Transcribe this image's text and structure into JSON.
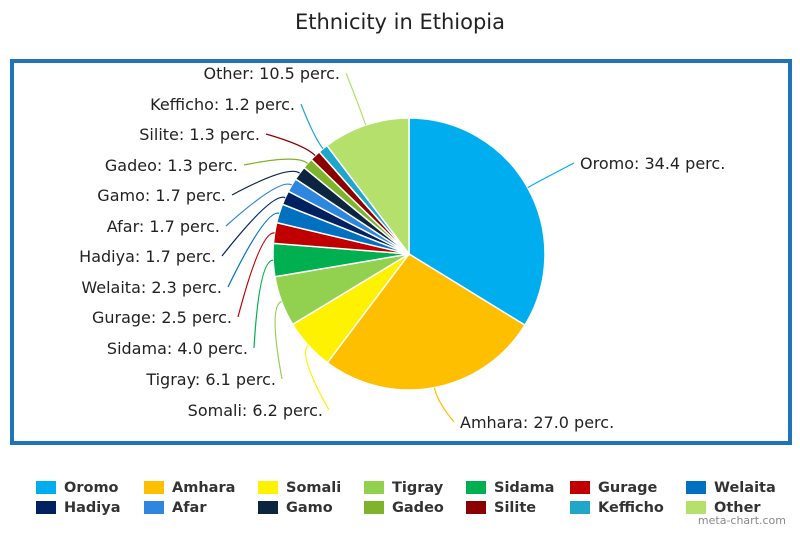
{
  "chart_data": {
    "type": "pie",
    "title": "Ethnicity in Ethiopia",
    "slices": [
      {
        "name": "Oromo",
        "value": 34.4,
        "label": "Oromo: 34.4 perc.",
        "color": "#00aeef"
      },
      {
        "name": "Amhara",
        "value": 27.0,
        "label": "Amhara: 27.0 perc.",
        "color": "#fdbf00"
      },
      {
        "name": "Somali",
        "value": 6.2,
        "label": "Somali: 6.2 perc.",
        "color": "#fff200"
      },
      {
        "name": "Tigray",
        "value": 6.1,
        "label": "Tigray: 6.1 perc.",
        "color": "#92d050"
      },
      {
        "name": "Sidama",
        "value": 4.0,
        "label": "Sidama: 4.0 perc.",
        "color": "#00b050"
      },
      {
        "name": "Gurage",
        "value": 2.5,
        "label": "Gurage: 2.5 perc.",
        "color": "#c00000"
      },
      {
        "name": "Welaita",
        "value": 2.3,
        "label": "Welaita: 2.3 perc.",
        "color": "#0070c0"
      },
      {
        "name": "Hadiya",
        "value": 1.7,
        "label": "Hadiya: 1.7 perc.",
        "color": "#002060"
      },
      {
        "name": "Afar",
        "value": 1.7,
        "label": "Afar: 1.7 perc.",
        "color": "#2e86de"
      },
      {
        "name": "Gamo",
        "value": 1.7,
        "label": "Gamo: 1.7 perc.",
        "color": "#0b2540"
      },
      {
        "name": "Gadeo",
        "value": 1.3,
        "label": "Gadeo: 1.3 perc.",
        "color": "#7fb32b"
      },
      {
        "name": "Silite",
        "value": 1.3,
        "label": "Silite: 1.3 perc.",
        "color": "#8b0000"
      },
      {
        "name": "Kefficho",
        "value": 1.2,
        "label": "Kefficho: 1.2 perc.",
        "color": "#1fa6c9"
      },
      {
        "name": "Other",
        "value": 10.5,
        "label": "Other: 10.5 perc.",
        "color": "#b5e06b"
      }
    ],
    "legend_position": "bottom"
  },
  "credit": "meta-chart.com"
}
